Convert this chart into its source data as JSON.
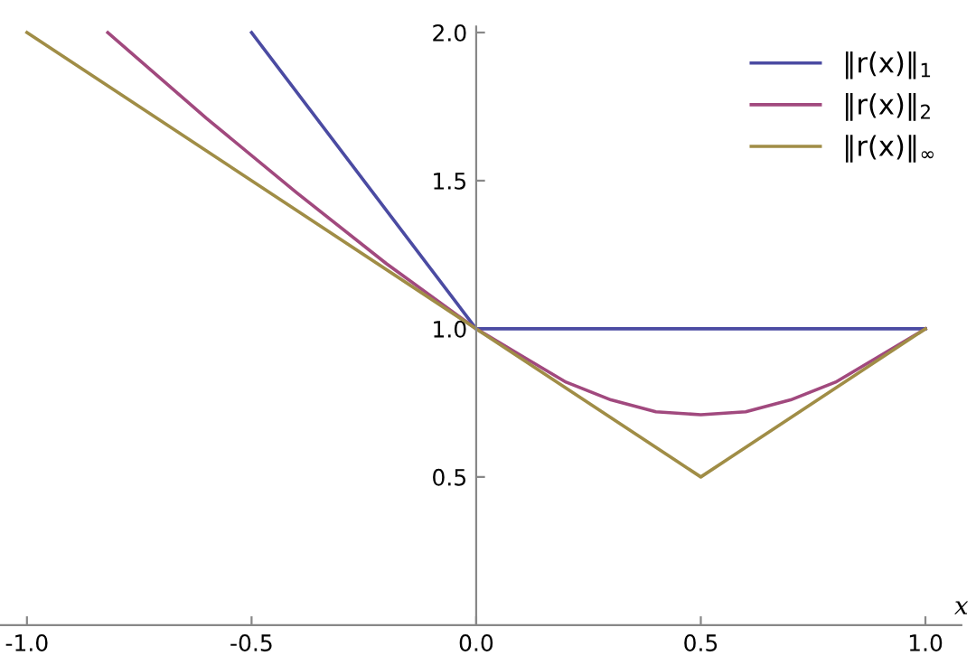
{
  "chart_data": {
    "type": "line",
    "xlabel": "x",
    "xlim": [
      -1.06,
      1.08
    ],
    "ylim": [
      0,
      2.02
    ],
    "xticks": [
      {
        "value": -1,
        "label": "-1.0"
      },
      -0.5,
      {
        "value": 0,
        "label": "0.0"
      },
      0.5,
      {
        "value": 1,
        "label": "1.0"
      }
    ],
    "yticks": [
      0.5,
      {
        "value": 1,
        "label": "1.0"
      },
      1.5,
      {
        "value": 2,
        "label": "2.0"
      }
    ],
    "legend": "top right",
    "grid": false,
    "marker": "none",
    "line_style": "solid",
    "series": [
      {
        "name": "‖r(x)‖$_{1}$",
        "color": "#4b4ba2",
        "x": [
          -0.5,
          0.0,
          0.5,
          1.0
        ],
        "values": [
          2.0,
          1.0,
          1.0,
          1.0
        ]
      },
      {
        "name": "‖r(x)‖$_{2}$",
        "color": "#a1497e",
        "x": [
          -0.82,
          -0.6,
          -0.4,
          -0.2,
          0.0,
          0.1,
          0.2,
          0.3,
          0.4,
          0.5,
          0.6,
          0.7,
          0.8,
          0.9,
          1.0
        ],
        "values": [
          2.0,
          1.71,
          1.46,
          1.22,
          1.0,
          0.91,
          0.82,
          0.76,
          0.72,
          0.71,
          0.72,
          0.76,
          0.82,
          0.91,
          1.0
        ]
      },
      {
        "name": "‖r(x)‖$_{∞}$",
        "color": "#a08d46",
        "x": [
          -1.0,
          0.0,
          0.5,
          1.0
        ],
        "values": [
          2.0,
          1.0,
          0.5,
          1.0
        ]
      }
    ]
  }
}
